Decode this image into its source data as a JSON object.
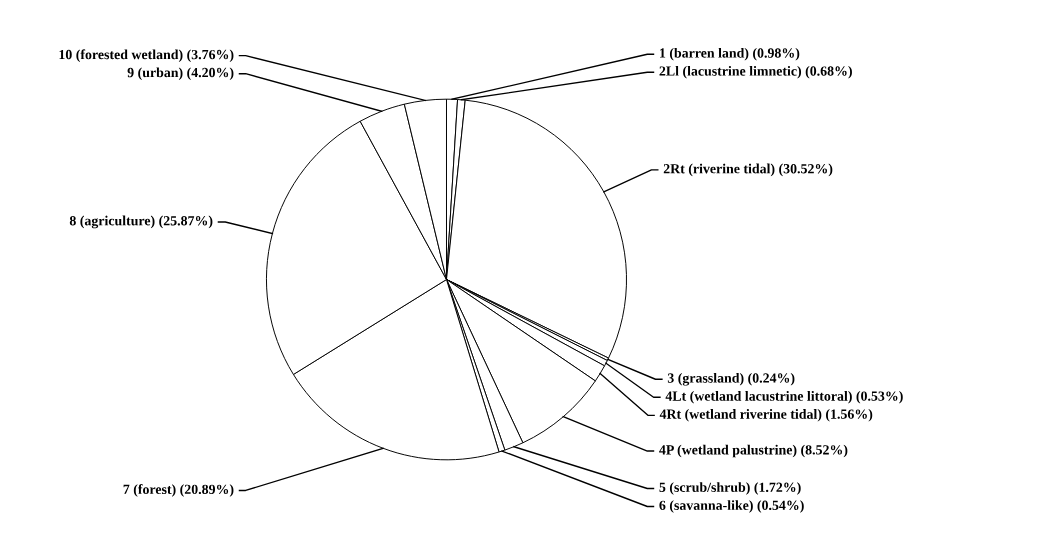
{
  "chart_data": {
    "type": "pie",
    "categories": [
      "1 (barren land)",
      "2Ll (lacustrine limnetic)",
      "2Rt (riverine tidal)",
      "3 (grassland)",
      "4Lt (wetland lacustrine littoral)",
      "4Rt (wetland riverine tidal)",
      "4P (wetland palustrine)",
      "5 (scrub/shrub)",
      "6 (savanna-like)",
      "7 (forest)",
      "8 (agriculture)",
      "9 (urban)",
      "10 (forested wetland)"
    ],
    "values": [
      0.98,
      0.68,
      30.52,
      0.24,
      0.53,
      1.56,
      8.52,
      1.72,
      0.54,
      20.89,
      25.87,
      4.2,
      3.76
    ],
    "value_labels": [
      "(0.98%)",
      "(0.68%)",
      "(30.52%)",
      "(0.24%)",
      "(0.53%)",
      "(1.56%)",
      "(8.52%)",
      "(1.72%)",
      "(0.54%)",
      "(20.89%)",
      "(25.87%)",
      "(4.20%)",
      "(3.76%)"
    ],
    "colors": [
      "#ffffff",
      "#ffffff",
      "#ffffff",
      "#ffffff",
      "#ffffff",
      "#ffffff",
      "#ffffff",
      "#ffffff",
      "#ffffff",
      "#ffffff",
      "#ffffff",
      "#ffffff",
      "#ffffff"
    ],
    "legend": false
  }
}
